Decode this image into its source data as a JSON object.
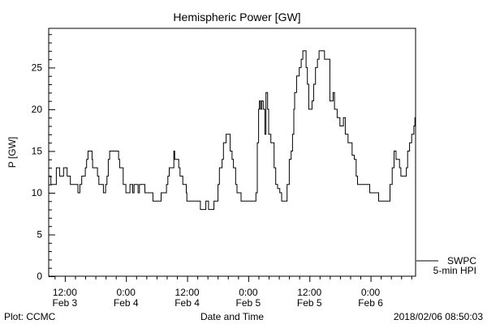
{
  "chart_data": {
    "type": "line",
    "title": "Hemispheric Power [GW]",
    "ylabel": "P [GW]",
    "xlabel": "Date and Time",
    "x_units": "hours since 2018/02/03 08:50",
    "ylim": [
      0,
      29.7
    ],
    "xlim": [
      0,
      72
    ],
    "grid": false,
    "yticks": [
      0,
      5,
      10,
      15,
      20,
      25
    ],
    "xticks": [
      {
        "hour": 3.17,
        "time": "12:00",
        "date": "Feb 3"
      },
      {
        "hour": 15.17,
        "time": "0:00",
        "date": "Feb 4"
      },
      {
        "hour": 27.17,
        "time": "12:00",
        "date": "Feb 4"
      },
      {
        "hour": 39.17,
        "time": "0:00",
        "date": "Feb 5"
      },
      {
        "hour": 51.17,
        "time": "12:00",
        "date": "Feb 5"
      },
      {
        "hour": 63.17,
        "time": "0:00",
        "date": "Feb 6"
      }
    ],
    "legend": {
      "placement": "bottom-right outside",
      "line1": "SWPC",
      "line2": "5-min HPI"
    },
    "series": [
      {
        "name": "SWPC 5-min HPI",
        "x": [
          0,
          0.43,
          1.49,
          2.13,
          2.92,
          3.61,
          4.25,
          5.74,
          6.11,
          6.48,
          7.18,
          7.44,
          7.71,
          8.24,
          8.51,
          8.61,
          9.3,
          9.57,
          9.84,
          10.5,
          10.74,
          11.16,
          11.43,
          11.7,
          11.96,
          13.56,
          13.72,
          13.93,
          14.62,
          15.15,
          15.84,
          15.95,
          16.48,
          16.75,
          17.01,
          17.54,
          17.81,
          18.07,
          18.87,
          19.14,
          20.2,
          20.46,
          21.8,
          22.06,
          22.86,
          23.12,
          23.39,
          23.65,
          24.03,
          24.56,
          24.72,
          25.25,
          25.52,
          25.78,
          26.32,
          27.0,
          27.11,
          29.5,
          29.77,
          30.41,
          30.84,
          31.26,
          31.37,
          32.17,
          32.43,
          32.96,
          33.23,
          33.5,
          34.02,
          34.29,
          34.82,
          35.35,
          35.62,
          35.99,
          36.26,
          36.68,
          36.95,
          37.48,
          37.75,
          38.28,
          40.51,
          40.67,
          40.94,
          41.2,
          41.36,
          41.57,
          41.78,
          42.1,
          42.42,
          42.64,
          42.96,
          43.17,
          43.6,
          44.02,
          44.23,
          44.55,
          44.92,
          45.35,
          45.72,
          46.52,
          46.79,
          47.21,
          47.58,
          47.85,
          48.11,
          48.27,
          48.64,
          49.18,
          49.55,
          49.87,
          50.08,
          50.51,
          50.77,
          51.04,
          51.46,
          51.67,
          51.99,
          52.36,
          52.74,
          53.06,
          53.8,
          54.12,
          55.02,
          55.18,
          55.55,
          55.82,
          56.09,
          56.62,
          57.15,
          57.42,
          57.84,
          58.21,
          58.74,
          59.01,
          59.54,
          59.97,
          60.34,
          60.61,
          62.73,
          63.0,
          64.6,
          64.75,
          66.72,
          66.99,
          67.41,
          67.78,
          68.16,
          68.58,
          68.85,
          69.11,
          69.91,
          70.18,
          70.44,
          70.82,
          71.24,
          71.67,
          71.88,
          72.0
        ],
        "y": [
          12,
          11,
          13,
          12,
          13,
          12,
          11,
          10,
          11,
          12,
          13,
          14,
          15,
          15,
          14,
          13,
          13,
          12,
          11,
          11,
          10,
          11,
          12,
          14,
          15,
          15,
          14,
          13,
          11,
          10,
          10,
          11,
          10,
          11,
          11,
          10,
          11,
          11,
          10,
          10,
          10,
          9,
          9,
          10,
          10,
          11,
          12,
          13,
          13,
          15,
          14,
          14,
          13,
          12,
          11,
          10,
          9,
          9,
          8,
          8,
          9,
          9,
          8,
          8,
          9,
          9,
          11,
          13,
          14,
          16,
          17,
          17,
          15,
          14,
          13,
          11,
          10,
          10,
          9,
          9,
          9,
          10,
          16,
          20,
          21,
          20,
          21,
          20,
          17,
          22,
          20,
          17,
          16,
          16,
          13,
          11,
          10.5,
          10,
          9,
          9,
          11,
          14,
          15,
          17,
          20,
          22,
          24,
          25,
          26,
          27,
          27,
          25,
          23,
          20,
          20,
          21,
          23,
          25,
          26,
          27,
          27,
          26,
          26,
          21,
          21,
          22,
          20,
          19,
          18,
          18,
          19,
          17,
          16,
          16,
          14.5,
          14,
          12,
          11,
          11,
          10,
          10,
          9,
          9,
          11,
          13,
          15,
          14,
          14,
          13,
          12,
          12,
          13,
          15,
          16,
          17,
          18,
          19,
          18
        ]
      }
    ],
    "footer_left": "Plot: CCMC",
    "footer_right": "2018/02/06 08:50:03"
  },
  "colors": {
    "line": "#000000",
    "background": "#ffffff"
  }
}
